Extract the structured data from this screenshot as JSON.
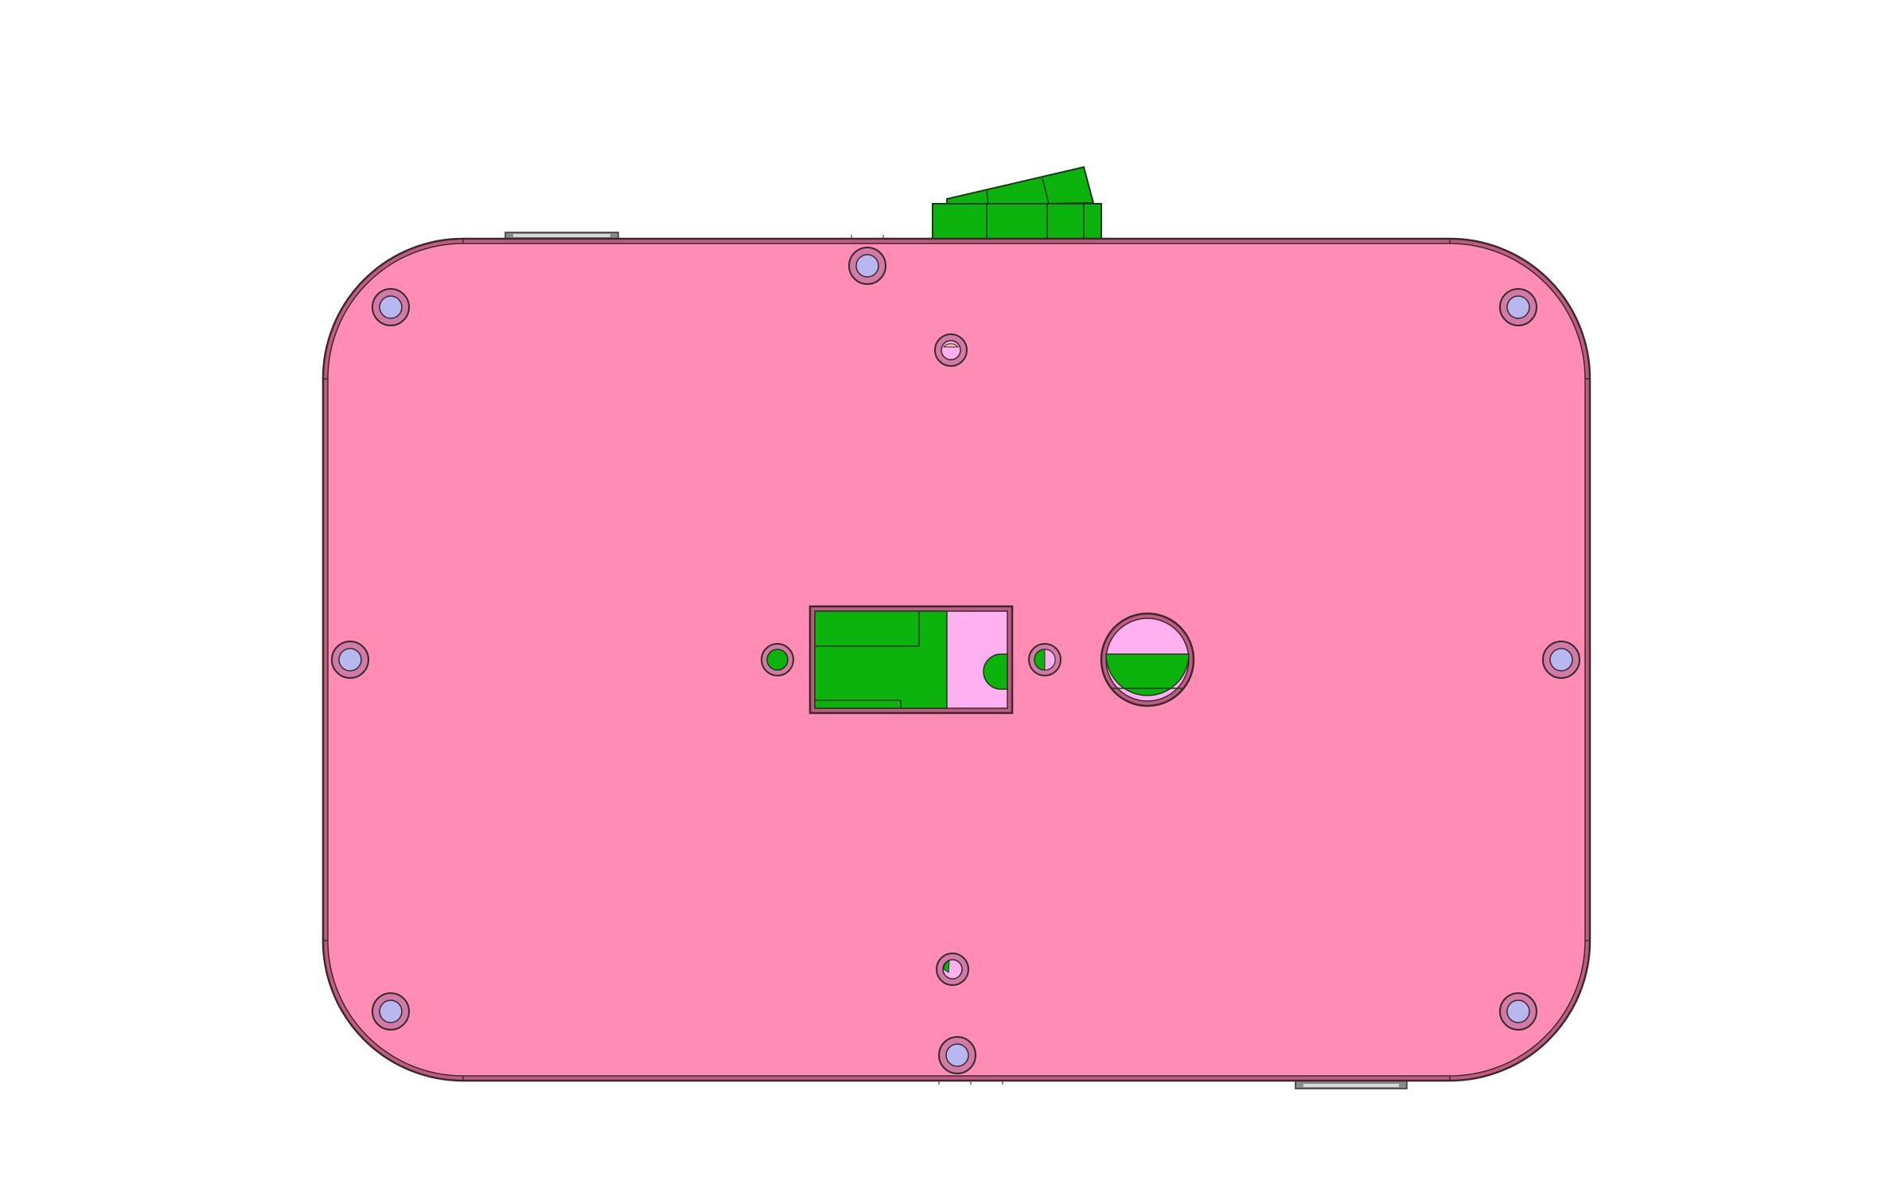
{
  "drawing": {
    "colors": {
      "background": "#ffffff",
      "panel_fill": "#ff8cb4",
      "panel_rim": "#c25a86",
      "outline": "#3a2a2a",
      "component_green": "#0db30d",
      "component_green_dark": "#0a8f0a",
      "cavity_pink": "#ffb0f0",
      "screw_head": "#b8b8f0",
      "screw_ring": "#d27aa6",
      "tab_gray": "#8a8a8a",
      "tab_light": "#d8d8d8"
    },
    "components": {
      "panel": "rounded-rectangle-panel",
      "toggle_switch": "rocker-switch",
      "connector": "rectangular-connector-cutout",
      "round_port": "round-port-cutout",
      "screws": "mounting-screws"
    }
  }
}
